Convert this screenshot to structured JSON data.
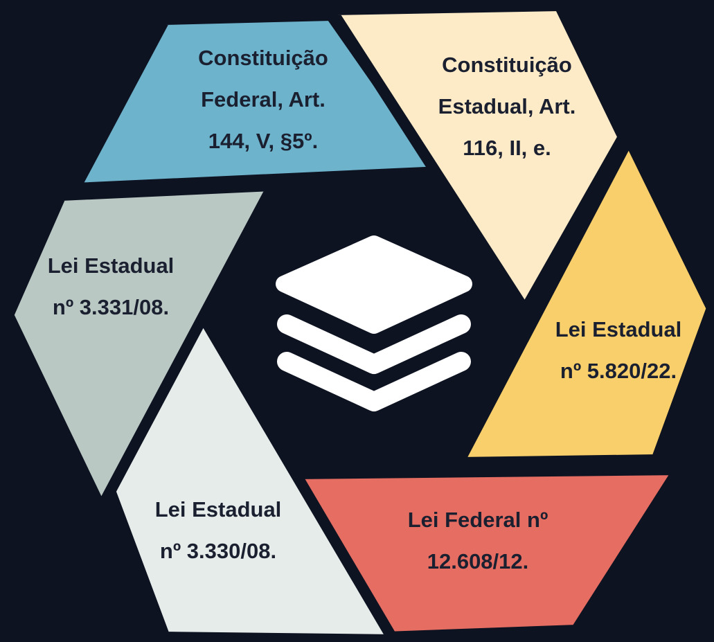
{
  "nodes": [
    {
      "lines": [
        "Constituição",
        "Federal, Art.",
        "144, V, §5º."
      ]
    },
    {
      "lines": [
        "Constituição",
        "Estadual, Art.",
        "116, II, e."
      ]
    },
    {
      "lines": [
        "Lei Estadual",
        "nº 5.820/22."
      ]
    },
    {
      "lines": [
        "Lei Federal nº",
        "12.608/12."
      ]
    },
    {
      "lines": [
        "Lei Estadual",
        "nº 3.330/08."
      ]
    },
    {
      "lines": [
        "Lei Estadual",
        "nº 3.331/08."
      ]
    }
  ]
}
